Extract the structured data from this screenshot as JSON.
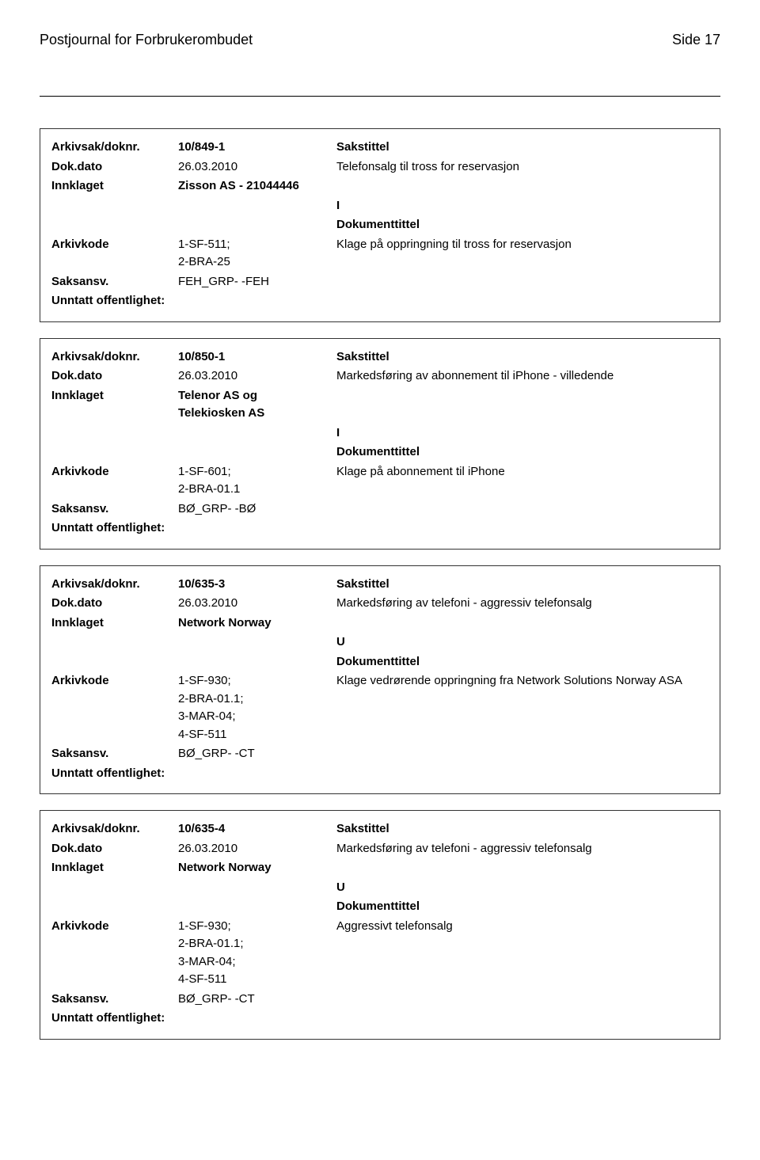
{
  "header": {
    "title": "Postjournal for Forbrukerombudet",
    "page": "Side 17"
  },
  "labels": {
    "arkivsak": "Arkivsak/doknr.",
    "dokdato": "Dok.dato",
    "innklaget": "Innklaget",
    "arkivkode": "Arkivkode",
    "saksansv": "Saksansv.",
    "unntatt": "Unntatt offentlighet:",
    "sakstittel": "Sakstittel",
    "dokumenttittel": "Dokumenttittel"
  },
  "records": [
    {
      "arkivsak": "10/849-1",
      "dokdato": "26.03.2010",
      "innklaget": "Zisson AS - 21044446",
      "type": "I",
      "arkivkode": "1-SF-511;\n2-BRA-25",
      "saksansv": "FEH_GRP- -FEH",
      "unntatt": "",
      "sakstittel": "Telefonsalg til tross for reservasjon",
      "dokumenttittel": "Klage på oppringning til tross for reservasjon"
    },
    {
      "arkivsak": "10/850-1",
      "dokdato": "26.03.2010",
      "innklaget": "Telenor AS og\nTelekiosken AS",
      "type": "I",
      "arkivkode": "1-SF-601;\n2-BRA-01.1",
      "saksansv": "BØ_GRP- -BØ",
      "unntatt": "",
      "sakstittel": "Markedsføring av abonnement til iPhone - villedende",
      "dokumenttittel": "Klage på abonnement til iPhone"
    },
    {
      "arkivsak": "10/635-3",
      "dokdato": "26.03.2010",
      "innklaget": "Network Norway",
      "type": "U",
      "arkivkode": "1-SF-930;\n2-BRA-01.1;\n3-MAR-04;\n4-SF-511",
      "saksansv": "BØ_GRP- -CT",
      "unntatt": "",
      "sakstittel": "Markedsføring av telefoni - aggressiv telefonsalg",
      "dokumenttittel": "Klage vedrørende oppringning fra Network Solutions Norway ASA"
    },
    {
      "arkivsak": "10/635-4",
      "dokdato": "26.03.2010",
      "innklaget": "Network Norway",
      "type": "U",
      "arkivkode": "1-SF-930;\n2-BRA-01.1;\n3-MAR-04;\n4-SF-511",
      "saksansv": "BØ_GRP- -CT",
      "unntatt": "",
      "sakstittel": "Markedsføring av telefoni - aggressiv telefonsalg",
      "dokumenttittel": "Aggressivt telefonsalg"
    }
  ]
}
